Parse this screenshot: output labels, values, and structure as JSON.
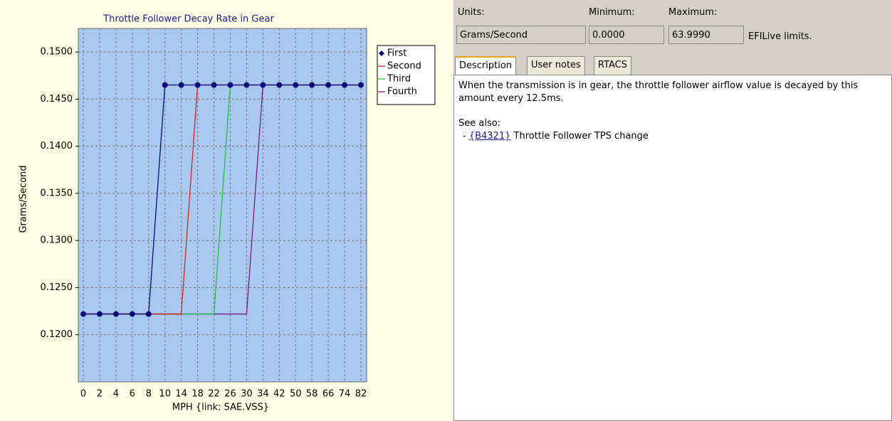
{
  "chart_data": {
    "type": "line",
    "title": "Throttle Follower Decay Rate in Gear",
    "x_label": "MPH {link: SAE.VSS}",
    "y_label": "Grams/Second",
    "categories": [
      "0",
      "2",
      "4",
      "6",
      "8",
      "10",
      "14",
      "18",
      "22",
      "26",
      "30",
      "34",
      "42",
      "50",
      "58",
      "66",
      "74",
      "82"
    ],
    "series": [
      {
        "name": "First",
        "color": "#0b0b7a",
        "values": [
          0.1222,
          0.1222,
          0.1222,
          0.1222,
          0.1222,
          0.1465,
          0.1465,
          0.1465,
          0.1465,
          0.1465,
          0.1465,
          0.1465,
          0.1465,
          0.1465,
          0.1465,
          0.1465,
          0.1465,
          0.1465
        ]
      },
      {
        "name": "Second",
        "color": "#e02020",
        "values": [
          0.1222,
          0.1222,
          0.1222,
          0.1222,
          0.1222,
          0.1222,
          0.1222,
          0.1465,
          0.1465,
          0.1465,
          0.1465,
          0.1465,
          0.1465,
          0.1465,
          0.1465,
          0.1465,
          0.1465,
          0.1465
        ]
      },
      {
        "name": "Third",
        "color": "#20c040",
        "values": [
          0.1222,
          0.1222,
          0.1222,
          0.1222,
          0.1222,
          0.1222,
          0.1222,
          0.1222,
          0.1222,
          0.1465,
          0.1465,
          0.1465,
          0.1465,
          0.1465,
          0.1465,
          0.1465,
          0.1465,
          0.1465
        ]
      },
      {
        "name": "Fourth",
        "color": "#7a1a8a",
        "values": [
          0.1222,
          0.1222,
          0.1222,
          0.1222,
          0.1222,
          0.1222,
          0.1222,
          0.1222,
          0.1222,
          0.1222,
          0.1222,
          0.1465,
          0.1465,
          0.1465,
          0.1465,
          0.1465,
          0.1465,
          0.1465
        ]
      }
    ],
    "ylim": [
      0.115,
      0.1525
    ],
    "yticks": [
      {
        "value": 0.12,
        "label": "0.1200"
      },
      {
        "value": 0.125,
        "label": "0.1250"
      },
      {
        "value": 0.13,
        "label": "0.1300"
      },
      {
        "value": 0.135,
        "label": "0.1350"
      },
      {
        "value": 0.14,
        "label": "0.1400"
      },
      {
        "value": 0.145,
        "label": "0.1450"
      },
      {
        "value": 0.15,
        "label": "0.1500"
      }
    ],
    "grid": true,
    "legend": "top-right"
  },
  "panel": {
    "units_label": "Units:",
    "minimum_label": "Minimum:",
    "maximum_label": "Maximum:",
    "units": "Grams/Second",
    "minimum": "0.0000",
    "maximum": "63.9990",
    "limits_note": "EFILive limits.",
    "tabs": [
      "Description",
      "User notes",
      "RTACS"
    ],
    "description": "When the transmission is in gear, the throttle follower airflow value is decayed by this amount every 12.5ms.",
    "see_also": "See also:",
    "link": "{B4321}",
    "link_text": "Throttle Follower TPS change"
  }
}
